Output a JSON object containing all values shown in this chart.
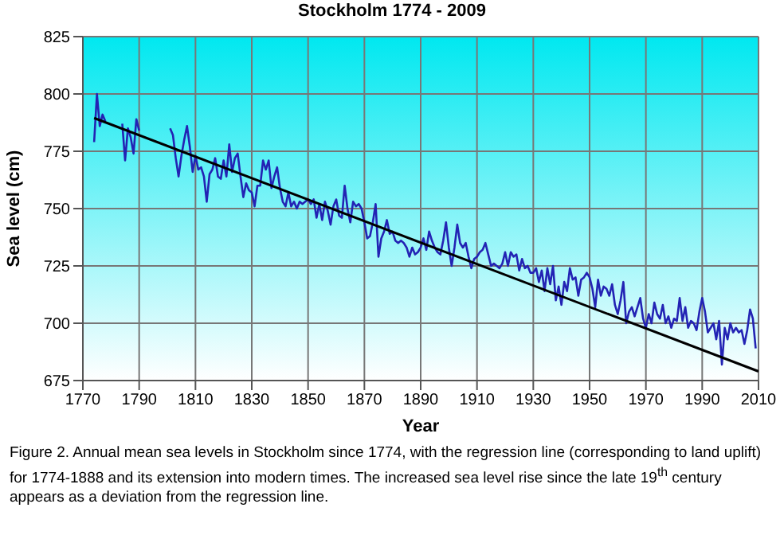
{
  "chart_data": {
    "type": "line",
    "title": "Stockholm 1774 - 2009",
    "xlabel": "Year",
    "ylabel": "Sea level (cm)",
    "annotations": [
      "Figure 2. Annual mean sea levels in Stockholm since 1774, with the regression line (corresponding to land uplift) for 1774-1888 and its extension into modern times. The increased sea level rise since the late 19$^{th}$ century appears as a deviation from the regression line."
    ],
    "xlim": [
      1770,
      2010
    ],
    "xticks": [
      1770,
      1790,
      1810,
      1830,
      1850,
      1870,
      1890,
      1910,
      1930,
      1950,
      1970,
      1990,
      2010
    ],
    "ylim": [
      675,
      825
    ],
    "yticks": [
      675,
      700,
      725,
      750,
      775,
      800,
      825
    ],
    "grid": true,
    "marker": "none",
    "line_style": "solid",
    "series": [
      {
        "color": "#2323b4",
        "x": [
          1774,
          1775,
          1776,
          1777,
          1778,
          1781,
          1784,
          1785,
          1786,
          1787,
          1788,
          1789,
          1790,
          1791,
          1796,
          1801,
          1802,
          1803,
          1804,
          1805,
          1806,
          1807,
          1808,
          1809,
          1810,
          1811,
          1812,
          1813,
          1814,
          1815,
          1816,
          1817,
          1818,
          1819,
          1820,
          1821,
          1822,
          1823,
          1824,
          1825,
          1826,
          1827,
          1828,
          1829,
          1830,
          1831,
          1832,
          1833,
          1834,
          1835,
          1836,
          1837,
          1838,
          1839,
          1840,
          1841,
          1842,
          1843,
          1844,
          1845,
          1846,
          1847,
          1848,
          1849,
          1850,
          1851,
          1852,
          1853,
          1854,
          1855,
          1856,
          1857,
          1858,
          1859,
          1860,
          1861,
          1862,
          1863,
          1864,
          1865,
          1866,
          1867,
          1868,
          1869,
          1870,
          1871,
          1872,
          1873,
          1874,
          1875,
          1876,
          1877,
          1878,
          1879,
          1880,
          1881,
          1882,
          1883,
          1884,
          1885,
          1886,
          1887,
          1888,
          1889,
          1890,
          1891,
          1892,
          1893,
          1894,
          1895,
          1896,
          1897,
          1898,
          1899,
          1900,
          1901,
          1902,
          1903,
          1904,
          1905,
          1906,
          1907,
          1908,
          1909,
          1910,
          1911,
          1912,
          1913,
          1914,
          1915,
          1916,
          1917,
          1918,
          1919,
          1920,
          1921,
          1922,
          1923,
          1924,
          1925,
          1926,
          1927,
          1928,
          1929,
          1930,
          1931,
          1932,
          1933,
          1934,
          1935,
          1936,
          1937,
          1938,
          1939,
          1940,
          1941,
          1942,
          1943,
          1944,
          1945,
          1946,
          1947,
          1948,
          1949,
          1950,
          1951,
          1952,
          1953,
          1954,
          1955,
          1956,
          1957,
          1958,
          1959,
          1960,
          1961,
          1962,
          1963,
          1964,
          1965,
          1966,
          1967,
          1968,
          1969,
          1970,
          1971,
          1972,
          1973,
          1974,
          1975,
          1976,
          1977,
          1978,
          1979,
          1980,
          1981,
          1982,
          1983,
          1984,
          1985,
          1986,
          1987,
          1988,
          1989,
          1990,
          1991,
          1992,
          1993,
          1994,
          1995,
          1996,
          1997,
          1998,
          1999,
          2000,
          2001,
          2002,
          2003,
          2004,
          2005,
          2006,
          2007,
          2008,
          2009
        ],
        "values": [
          779,
          800,
          786,
          791,
          788,
          null,
          787,
          771,
          785,
          781,
          774,
          789,
          784,
          null,
          null,
          785,
          782,
          772,
          764,
          773,
          780,
          786,
          777,
          766,
          773,
          767,
          768,
          764,
          753,
          765,
          767,
          772,
          764,
          763,
          771,
          764,
          778,
          766,
          772,
          774,
          764,
          755,
          761,
          758,
          757,
          751,
          760,
          760,
          771,
          767,
          771,
          759,
          764,
          768,
          759,
          753,
          751,
          757,
          751,
          753,
          750,
          753,
          752,
          753,
          754,
          752,
          754,
          746,
          752,
          745,
          753,
          749,
          743,
          751,
          754,
          747,
          746,
          760,
          750,
          744,
          753,
          751,
          752,
          750,
          744,
          737,
          738,
          744,
          752,
          729,
          737,
          740,
          745,
          739,
          740,
          736,
          735,
          736,
          735,
          733,
          729,
          733,
          730,
          731,
          733,
          737,
          732,
          740,
          736,
          733,
          731,
          730,
          736,
          744,
          733,
          725,
          733,
          743,
          735,
          733,
          735,
          729,
          724,
          728,
          729,
          731,
          732,
          735,
          730,
          725,
          726,
          725,
          724,
          726,
          731,
          725,
          731,
          729,
          730,
          723,
          728,
          724,
          725,
          722,
          722,
          724,
          718,
          723,
          714,
          724,
          717,
          725,
          710,
          716,
          708,
          718,
          714,
          724,
          719,
          720,
          712,
          719,
          720,
          722,
          720,
          715,
          707,
          719,
          712,
          716,
          715,
          712,
          717,
          708,
          704,
          710,
          718,
          700,
          705,
          707,
          703,
          707,
          711,
          702,
          698,
          704,
          700,
          709,
          704,
          702,
          708,
          700,
          703,
          698,
          702,
          701,
          711,
          701,
          707,
          698,
          701,
          700,
          697,
          705,
          711,
          705,
          696,
          698,
          700,
          693,
          701,
          682,
          698,
          693,
          700,
          696,
          698,
          696,
          697,
          691,
          697,
          706,
          702,
          689
        ]
      },
      {
        "type": "line",
        "color": "#000000",
        "x": [
          1774,
          2010
        ],
        "values": [
          789.5,
          679
        ]
      }
    ]
  }
}
